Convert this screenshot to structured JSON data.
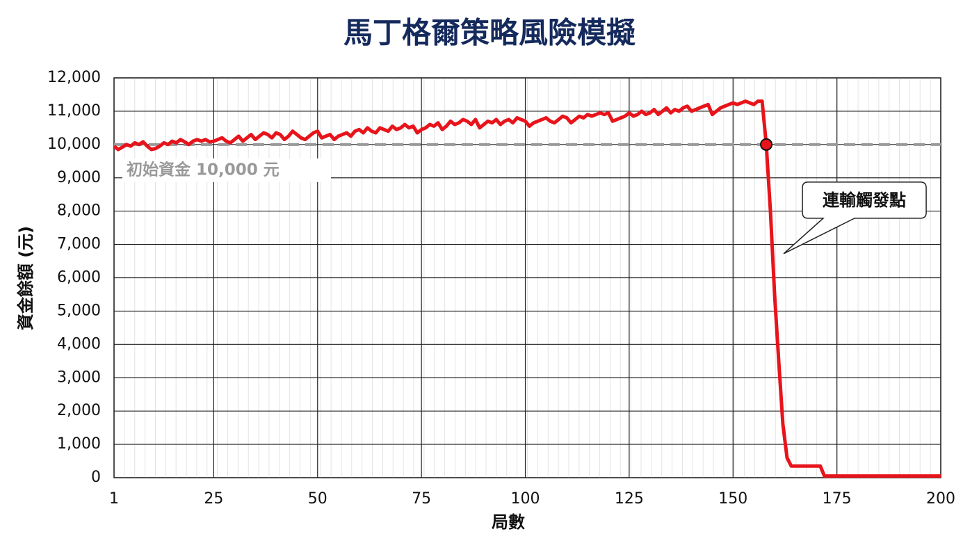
{
  "chart_data": {
    "type": "line",
    "title": "馬丁格爾策略風險模擬",
    "xlabel": "局數",
    "ylabel": "資金餘額 (元)",
    "x": [
      1,
      2,
      3,
      4,
      5,
      6,
      7,
      8,
      9,
      10,
      11,
      12,
      13,
      14,
      15,
      16,
      17,
      18,
      19,
      20,
      21,
      22,
      23,
      24,
      25,
      26,
      27,
      28,
      29,
      30,
      31,
      32,
      33,
      34,
      35,
      36,
      37,
      38,
      39,
      40,
      41,
      42,
      43,
      44,
      45,
      46,
      47,
      48,
      49,
      50,
      51,
      52,
      53,
      54,
      55,
      56,
      57,
      58,
      59,
      60,
      61,
      62,
      63,
      64,
      65,
      66,
      67,
      68,
      69,
      70,
      71,
      72,
      73,
      74,
      75,
      76,
      77,
      78,
      79,
      80,
      81,
      82,
      83,
      84,
      85,
      86,
      87,
      88,
      89,
      90,
      91,
      92,
      93,
      94,
      95,
      96,
      97,
      98,
      99,
      100,
      101,
      102,
      103,
      104,
      105,
      106,
      107,
      108,
      109,
      110,
      111,
      112,
      113,
      114,
      115,
      116,
      117,
      118,
      119,
      120,
      121,
      122,
      123,
      124,
      125,
      126,
      127,
      128,
      129,
      130,
      131,
      132,
      133,
      134,
      135,
      136,
      137,
      138,
      139,
      140,
      141,
      142,
      143,
      144,
      145,
      146,
      147,
      148,
      149,
      150,
      151,
      152,
      153,
      154,
      155,
      156,
      157,
      158,
      159,
      160,
      161,
      162,
      163,
      164,
      165,
      166,
      167,
      168,
      169,
      170,
      171,
      172,
      173,
      174,
      175,
      176,
      177,
      178,
      179,
      180,
      181,
      182,
      183,
      184,
      185,
      186,
      187,
      188,
      189,
      190,
      191,
      192,
      193,
      194,
      195,
      196,
      197,
      198,
      199,
      200
    ],
    "series": [
      {
        "name": "資金餘額",
        "color": "#e8141b",
        "values": [
          9950,
          9850,
          9920,
          10000,
          9950,
          10050,
          10000,
          10080,
          9950,
          9850,
          9880,
          9950,
          10050,
          10000,
          10100,
          10050,
          10150,
          10080,
          10000,
          10100,
          10150,
          10100,
          10150,
          10080,
          10100,
          10150,
          10200,
          10100,
          10050,
          10150,
          10250,
          10100,
          10200,
          10300,
          10150,
          10250,
          10350,
          10300,
          10200,
          10350,
          10300,
          10150,
          10250,
          10400,
          10300,
          10200,
          10150,
          10250,
          10350,
          10400,
          10200,
          10250,
          10300,
          10150,
          10250,
          10300,
          10350,
          10250,
          10400,
          10450,
          10350,
          10500,
          10400,
          10350,
          10500,
          10450,
          10400,
          10550,
          10450,
          10500,
          10600,
          10500,
          10550,
          10350,
          10450,
          10500,
          10600,
          10550,
          10650,
          10450,
          10550,
          10700,
          10600,
          10650,
          10750,
          10700,
          10600,
          10750,
          10500,
          10600,
          10700,
          10650,
          10750,
          10600,
          10700,
          10750,
          10650,
          10800,
          10750,
          10700,
          10550,
          10650,
          10700,
          10750,
          10800,
          10700,
          10650,
          10750,
          10850,
          10800,
          10650,
          10750,
          10850,
          10800,
          10900,
          10850,
          10900,
          10950,
          10900,
          10950,
          10700,
          10750,
          10800,
          10850,
          10950,
          10850,
          10900,
          11000,
          10900,
          10950,
          11050,
          10900,
          11000,
          11100,
          10950,
          11050,
          11000,
          11100,
          11150,
          11000,
          11050,
          11100,
          11150,
          11200,
          10900,
          11000,
          11100,
          11150,
          11200,
          11250,
          11200,
          11250,
          11300,
          11250,
          11200,
          11300,
          11300,
          10000,
          8000,
          5500,
          3500,
          1600,
          600,
          350,
          350,
          350,
          350,
          350,
          350,
          350,
          350,
          50,
          50,
          50,
          50,
          50,
          50,
          50,
          50,
          50,
          50,
          50,
          50,
          50,
          50,
          50,
          50,
          50,
          50,
          50,
          50,
          50,
          50,
          50,
          50,
          50,
          50,
          50,
          50,
          50
        ]
      }
    ],
    "xlim": [
      1,
      200
    ],
    "xticks": [
      1,
      25,
      50,
      75,
      100,
      125,
      150,
      175,
      200
    ],
    "ylim": [
      0,
      12000
    ],
    "yticks": [
      0,
      {
        "value": 1000,
        "label": "1,000"
      },
      {
        "value": 2000,
        "label": "2,000"
      },
      {
        "value": 3000,
        "label": "3,000"
      },
      {
        "value": 4000,
        "label": "4,000"
      },
      {
        "value": 5000,
        "label": "5,000"
      },
      {
        "value": 6000,
        "label": "6,000"
      },
      {
        "value": 7000,
        "label": "7,000"
      },
      {
        "value": 8000,
        "label": "8,000"
      },
      {
        "value": 9000,
        "label": "9,000"
      },
      {
        "value": 10000,
        "label": "10,000"
      },
      {
        "value": 11000,
        "label": "11,000"
      },
      {
        "value": 12000,
        "label": "12,000"
      }
    ],
    "grid": true,
    "reference_line": {
      "value": 10000,
      "label": "初始資金 10,000 元",
      "color": "#999999"
    },
    "annotations": [
      {
        "text": "連輸觸發點",
        "x": 158,
        "y": 10000
      }
    ]
  }
}
